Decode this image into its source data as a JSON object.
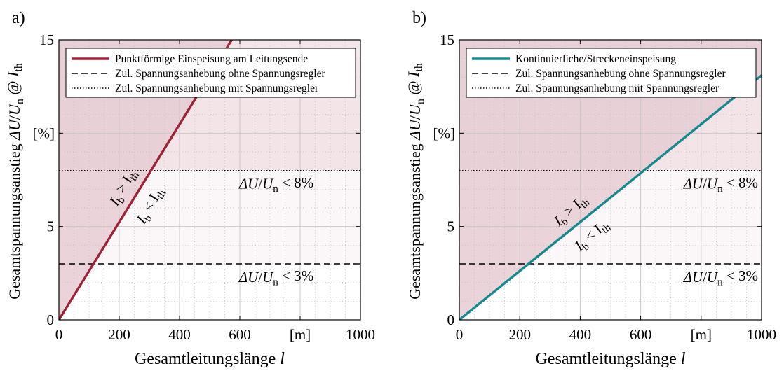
{
  "chart_data": [
    {
      "panel_label": "a)",
      "type": "line",
      "ylabel_main": "Gesamtspannungsanstieg ΔU/U",
      "ylabel_main_sub": "n",
      "ylabel_at": " @ I",
      "ylabel_at_sub": "th",
      "ylabel_unit": "[%]",
      "xlabel": "Gesamtleitungslänge",
      "xlabel_var": "l",
      "xlabel_unit": "[m]",
      "xlim": [
        0,
        1000
      ],
      "ylim": [
        0,
        15
      ],
      "xticks": [
        0,
        200,
        400,
        600,
        800,
        1000
      ],
      "xtick_labels": [
        "0",
        "200",
        "400",
        "600",
        "",
        "1000"
      ],
      "yticks": [
        0,
        5,
        10,
        15
      ],
      "ytick_labels": [
        "0",
        "5",
        "",
        "15"
      ],
      "grid": true,
      "legend_position": "top",
      "series": [
        {
          "name": "Punktförmige Einspeisung am Leitungsende",
          "style": "solid",
          "color": "#9e2136",
          "x": [
            0,
            573
          ],
          "y": [
            0,
            15
          ]
        },
        {
          "name": "Zul. Spannungsanhebung ohne Spannungsregler",
          "style": "dashed",
          "color": "#000000",
          "x": [
            0,
            1000
          ],
          "y": [
            3,
            3
          ]
        },
        {
          "name": "Zul. Spannungsanhebung mit Spannungsregler",
          "style": "dotted",
          "color": "#000000",
          "x": [
            0,
            1000
          ],
          "y": [
            8,
            8
          ]
        }
      ],
      "annotations": [
        {
          "text": "ΔU/U",
          "sub": "n",
          "rest": " < 8%"
        },
        {
          "text": "ΔU/U",
          "sub": "n",
          "rest": " < 3%"
        },
        {
          "text": "I",
          "sub": "b",
          "rest": " > I",
          "sub2": "th"
        },
        {
          "text": "I",
          "sub": "b",
          "rest": " < I",
          "sub2": "th"
        }
      ]
    },
    {
      "panel_label": "b)",
      "type": "line",
      "ylabel_main": "Gesamtspannungsanstieg ΔU/U",
      "ylabel_main_sub": "n",
      "ylabel_at": " @ I",
      "ylabel_at_sub": "th",
      "ylabel_unit": "[%]",
      "xlabel": "Gesamtleitungslänge",
      "xlabel_var": "l",
      "xlabel_unit": "[m]",
      "xlim": [
        0,
        1000
      ],
      "ylim": [
        0,
        15
      ],
      "xticks": [
        0,
        200,
        400,
        600,
        800,
        1000
      ],
      "xtick_labels": [
        "0",
        "200",
        "400",
        "600",
        "",
        "1000"
      ],
      "yticks": [
        0,
        5,
        10,
        15
      ],
      "ytick_labels": [
        "0",
        "5",
        "",
        "15"
      ],
      "grid": true,
      "legend_position": "top",
      "series": [
        {
          "name": "Kontinuierliche/Streckeneinspeisung",
          "style": "solid",
          "color": "#14898f",
          "x": [
            0,
            1000
          ],
          "y": [
            0,
            13.1
          ]
        },
        {
          "name": "Zul. Spannungsanhebung ohne Spannungsregler",
          "style": "dashed",
          "color": "#000000",
          "x": [
            0,
            1000
          ],
          "y": [
            3,
            3
          ]
        },
        {
          "name": "Zul. Spannungsanhebung mit Spannungsregler",
          "style": "dotted",
          "color": "#000000",
          "x": [
            0,
            1000
          ],
          "y": [
            8,
            8
          ]
        }
      ],
      "annotations": [
        {
          "text": "ΔU/U",
          "sub": "n",
          "rest": " < 8%"
        },
        {
          "text": "ΔU/U",
          "sub": "n",
          "rest": " < 3%"
        },
        {
          "text": "I",
          "sub": "b",
          "rest": " > I",
          "sub2": "th"
        },
        {
          "text": "I",
          "sub": "b",
          "rest": " < I",
          "sub2": "th"
        }
      ]
    }
  ],
  "colors": {
    "region_dark": "#e6cdd3",
    "region_mid": "#f2e4e7",
    "region_light": "#fbf6f7",
    "grid": "#c9c9c9",
    "grid_minor": "#bcbcbc"
  }
}
